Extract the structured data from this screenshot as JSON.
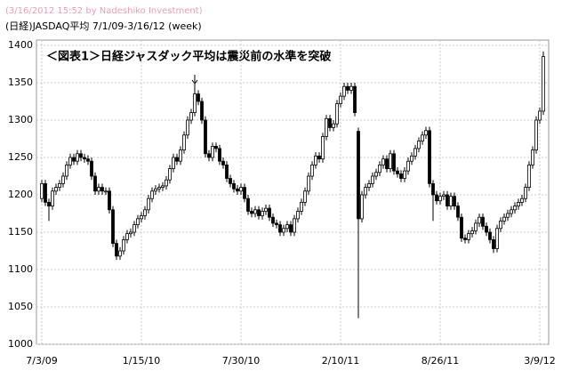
{
  "chart_data": {
    "type": "candlestick",
    "credit": "(3/16/2012 15:52 by Nadeshiko Investment)",
    "subtitle": "(日経)JASDAQ平均  7/1/09-3/16/12 (week)",
    "title": "＜図表1＞日経ジャスダック平均は震災前の水準を突破",
    "categories": [
      "7/3/09",
      null,
      null,
      null,
      null,
      null,
      null,
      null,
      null,
      null,
      null,
      null,
      null,
      null,
      null,
      null,
      null,
      null,
      null,
      null,
      null,
      null,
      null,
      null,
      null,
      null,
      null,
      null,
      "1/15/10",
      null,
      null,
      null,
      null,
      null,
      null,
      null,
      null,
      null,
      null,
      null,
      null,
      null,
      null,
      null,
      null,
      null,
      null,
      null,
      null,
      null,
      null,
      null,
      null,
      null,
      null,
      null,
      "7/30/10",
      null,
      null,
      null,
      null,
      null,
      null,
      null,
      null,
      null,
      null,
      null,
      null,
      null,
      null,
      null,
      null,
      null,
      null,
      null,
      null,
      null,
      null,
      null,
      null,
      null,
      null,
      null,
      "2/10/11",
      null,
      null,
      null,
      null,
      null,
      null,
      null,
      null,
      null,
      null,
      null,
      null,
      null,
      null,
      null,
      null,
      null,
      null,
      null,
      null,
      null,
      null,
      null,
      null,
      null,
      null,
      null,
      "8/26/11",
      null,
      null,
      null,
      null,
      null,
      null,
      null,
      null,
      null,
      null,
      null,
      null,
      null,
      null,
      null,
      null,
      null,
      null,
      null,
      null,
      null,
      null,
      null,
      null,
      null,
      null,
      null,
      "3/9/12",
      null
    ],
    "open": [
      1195,
      1215,
      1190,
      1185,
      1205,
      1210,
      1215,
      1225,
      1240,
      1250,
      1245,
      1255,
      1250,
      1248,
      1245,
      1225,
      1205,
      1210,
      1205,
      1205,
      1180,
      1135,
      1118,
      1125,
      1140,
      1148,
      1150,
      1160,
      1168,
      1172,
      1180,
      1195,
      1205,
      1208,
      1210,
      1212,
      1220,
      1235,
      1250,
      1245,
      1260,
      1280,
      1300,
      1310,
      1335,
      1325,
      1300,
      1255,
      1250,
      1265,
      1262,
      1245,
      1240,
      1222,
      1215,
      1208,
      1205,
      1210,
      1195,
      1178,
      1175,
      1180,
      1172,
      1178,
      1182,
      1170,
      1162,
      1160,
      1150,
      1155,
      1160,
      1150,
      1168,
      1178,
      1190,
      1205,
      1225,
      1240,
      1252,
      1248,
      1278,
      1302,
      1290,
      1295,
      1322,
      1332,
      1345,
      1340,
      1345,
      1285,
      1168,
      1200,
      1210,
      1215,
      1225,
      1230,
      1240,
      1248,
      1235,
      1255,
      1232,
      1228,
      1222,
      1232,
      1245,
      1252,
      1262,
      1272,
      1280,
      1286,
      1215,
      1200,
      1192,
      1198,
      1200,
      1185,
      1198,
      1185,
      1170,
      1142,
      1140,
      1148,
      1152,
      1162,
      1170,
      1158,
      1150,
      1140,
      1128,
      1155,
      1165,
      1170,
      1175,
      1180,
      1185,
      1190,
      1195,
      1210,
      1240,
      1260,
      1300,
      1312
    ],
    "high": [
      1220,
      1220,
      1195,
      1210,
      1215,
      1220,
      1230,
      1245,
      1255,
      1255,
      1260,
      1260,
      1255,
      1253,
      1250,
      1230,
      1215,
      1215,
      1210,
      1210,
      1185,
      1140,
      1130,
      1145,
      1153,
      1155,
      1165,
      1173,
      1177,
      1185,
      1200,
      1210,
      1213,
      1215,
      1217,
      1225,
      1240,
      1255,
      1255,
      1265,
      1285,
      1305,
      1315,
      1352,
      1340,
      1330,
      1305,
      1260,
      1270,
      1270,
      1267,
      1250,
      1245,
      1227,
      1220,
      1213,
      1215,
      1215,
      1200,
      1183,
      1185,
      1185,
      1183,
      1187,
      1187,
      1175,
      1167,
      1165,
      1160,
      1165,
      1165,
      1173,
      1183,
      1195,
      1210,
      1230,
      1245,
      1257,
      1257,
      1283,
      1307,
      1307,
      1300,
      1327,
      1337,
      1350,
      1350,
      1350,
      1350,
      1290,
      1205,
      1215,
      1220,
      1230,
      1235,
      1245,
      1253,
      1253,
      1260,
      1260,
      1237,
      1233,
      1237,
      1250,
      1257,
      1267,
      1277,
      1285,
      1291,
      1291,
      1220,
      1205,
      1203,
      1205,
      1205,
      1203,
      1203,
      1190,
      1175,
      1147,
      1153,
      1157,
      1167,
      1175,
      1175,
      1163,
      1155,
      1145,
      1160,
      1170,
      1175,
      1180,
      1185,
      1190,
      1195,
      1200,
      1215,
      1245,
      1265,
      1305,
      1317,
      1392
    ],
    "low": [
      1190,
      1185,
      1165,
      1180,
      1200,
      1205,
      1210,
      1220,
      1235,
      1240,
      1240,
      1245,
      1243,
      1240,
      1220,
      1200,
      1200,
      1200,
      1200,
      1175,
      1130,
      1113,
      1113,
      1120,
      1135,
      1143,
      1145,
      1155,
      1163,
      1167,
      1175,
      1190,
      1200,
      1203,
      1205,
      1207,
      1215,
      1230,
      1240,
      1240,
      1255,
      1275,
      1295,
      1305,
      1320,
      1295,
      1250,
      1245,
      1245,
      1257,
      1240,
      1235,
      1217,
      1210,
      1203,
      1200,
      1200,
      1190,
      1173,
      1170,
      1170,
      1167,
      1167,
      1173,
      1165,
      1157,
      1155,
      1145,
      1145,
      1150,
      1145,
      1145,
      1163,
      1173,
      1185,
      1200,
      1220,
      1235,
      1243,
      1243,
      1273,
      1285,
      1285,
      1290,
      1317,
      1327,
      1335,
      1335,
      1305,
      1035,
      1163,
      1195,
      1205,
      1210,
      1220,
      1225,
      1235,
      1230,
      1230,
      1227,
      1223,
      1217,
      1217,
      1227,
      1240,
      1247,
      1257,
      1267,
      1275,
      1210,
      1165,
      1187,
      1187,
      1193,
      1180,
      1180,
      1180,
      1165,
      1137,
      1135,
      1135,
      1143,
      1147,
      1157,
      1153,
      1145,
      1135,
      1122,
      1123,
      1150,
      1160,
      1165,
      1170,
      1175,
      1180,
      1185,
      1190,
      1205,
      1235,
      1255,
      1295,
      1307
    ],
    "close": [
      1215,
      1190,
      1185,
      1205,
      1210,
      1215,
      1225,
      1240,
      1250,
      1245,
      1255,
      1250,
      1248,
      1245,
      1225,
      1205,
      1210,
      1205,
      1205,
      1180,
      1135,
      1118,
      1125,
      1140,
      1148,
      1150,
      1160,
      1168,
      1172,
      1180,
      1195,
      1205,
      1208,
      1210,
      1212,
      1220,
      1235,
      1250,
      1245,
      1260,
      1280,
      1300,
      1310,
      1335,
      1325,
      1300,
      1255,
      1250,
      1265,
      1262,
      1245,
      1240,
      1222,
      1215,
      1208,
      1205,
      1210,
      1195,
      1178,
      1175,
      1180,
      1172,
      1178,
      1182,
      1170,
      1162,
      1160,
      1150,
      1155,
      1160,
      1150,
      1168,
      1178,
      1190,
      1205,
      1225,
      1240,
      1252,
      1248,
      1278,
      1302,
      1290,
      1295,
      1322,
      1332,
      1345,
      1340,
      1345,
      1310,
      1168,
      1200,
      1210,
      1215,
      1225,
      1230,
      1240,
      1248,
      1235,
      1255,
      1232,
      1228,
      1222,
      1232,
      1245,
      1252,
      1262,
      1272,
      1280,
      1286,
      1215,
      1200,
      1192,
      1198,
      1200,
      1185,
      1198,
      1185,
      1170,
      1142,
      1140,
      1148,
      1152,
      1162,
      1170,
      1158,
      1150,
      1140,
      1128,
      1155,
      1165,
      1170,
      1175,
      1180,
      1185,
      1190,
      1195,
      1210,
      1240,
      1260,
      1300,
      1312,
      1385
    ],
    "up_color": "#ffffff",
    "down_color": "#000000",
    "ylim": [
      1000,
      1400
    ],
    "yticks": [
      1000,
      1050,
      1100,
      1150,
      1200,
      1250,
      1300,
      1350,
      1400
    ],
    "grid": true
  }
}
